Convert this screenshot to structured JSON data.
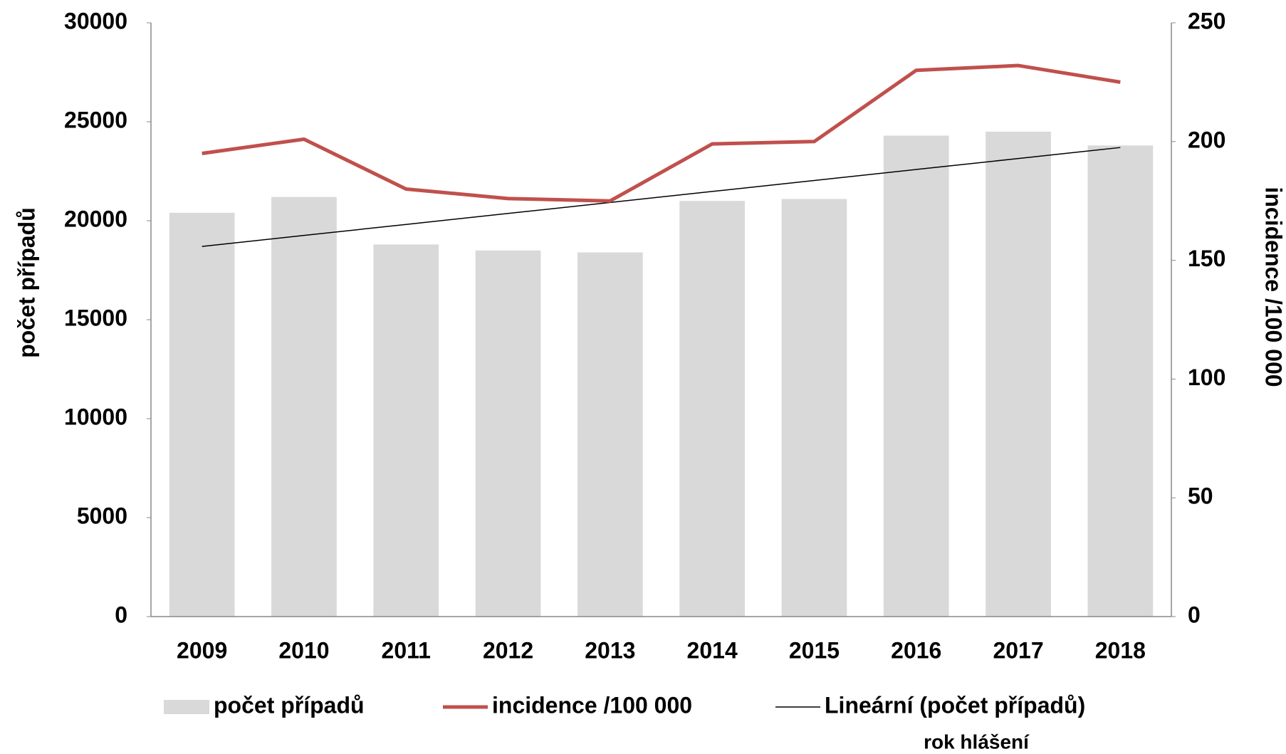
{
  "chart_data": {
    "type": "bar_line",
    "categories": [
      "2009",
      "2010",
      "2011",
      "2012",
      "2013",
      "2014",
      "2015",
      "2016",
      "2017",
      "2018"
    ],
    "series": [
      {
        "name": "počet případů",
        "color": "#d9d9d9",
        "type": "bar",
        "values": [
          20400,
          21200,
          18800,
          18500,
          18400,
          21000,
          21100,
          24300,
          24500,
          23800
        ]
      },
      {
        "name": "incidence /100 000",
        "color": "#c0504d",
        "type": "line",
        "axis": "y2",
        "values": [
          195,
          201,
          180,
          176,
          175,
          199,
          200,
          230,
          232,
          225
        ]
      }
    ],
    "trendline": {
      "name": "Lineární (počet případů)",
      "color": "#000000",
      "of_series": 0
    },
    "ylabel": "počet případů",
    "y2label": "incidence /100 000",
    "xlabel": "rok hlášení",
    "ylim": [
      0,
      30000
    ],
    "yticks": [
      0,
      5000,
      10000,
      15000,
      20000,
      25000,
      30000
    ],
    "y2lim": [
      0,
      250
    ],
    "y2ticks": [
      0,
      50,
      100,
      150,
      200,
      250
    ]
  }
}
